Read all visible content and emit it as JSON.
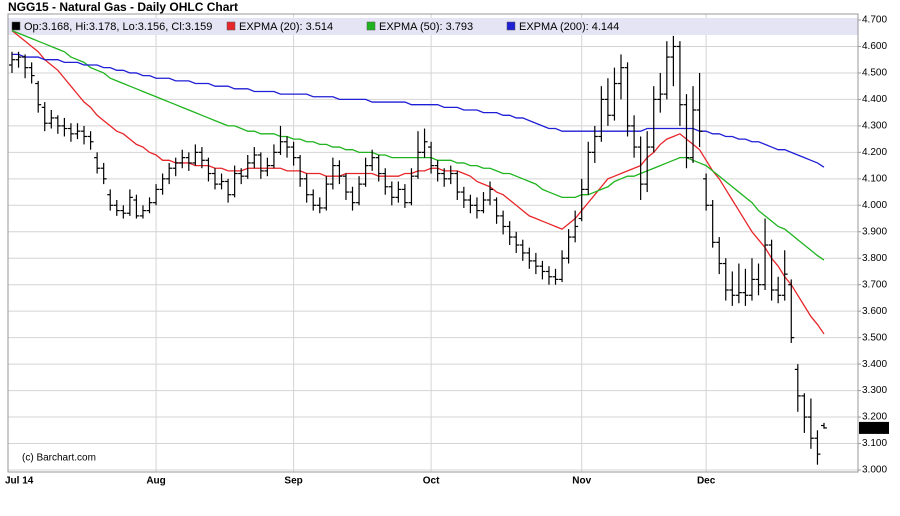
{
  "chart_data": {
    "type": "ohlc",
    "title": "NGG15 - Natural Gas - Daily OHLC Chart",
    "credit": "(c) Barchart.com",
    "categories": [
      "Jul 14",
      null,
      null,
      null,
      null,
      null,
      null,
      null,
      null,
      null,
      null,
      null,
      null,
      null,
      null,
      null,
      null,
      null,
      null,
      null,
      null,
      null,
      "Aug",
      null,
      null,
      null,
      null,
      null,
      null,
      null,
      null,
      null,
      null,
      null,
      null,
      null,
      null,
      null,
      null,
      null,
      null,
      null,
      null,
      "Sep",
      null,
      null,
      null,
      null,
      null,
      null,
      null,
      null,
      null,
      null,
      null,
      null,
      null,
      null,
      null,
      null,
      null,
      null,
      null,
      null,
      "Oct",
      null,
      null,
      null,
      null,
      null,
      null,
      null,
      null,
      null,
      null,
      null,
      null,
      null,
      null,
      null,
      null,
      null,
      null,
      null,
      null,
      null,
      null,
      "Nov",
      null,
      null,
      null,
      null,
      null,
      null,
      null,
      null,
      null,
      null,
      null,
      null,
      null,
      null,
      null,
      null,
      null,
      null,
      "Dec",
      null,
      null,
      null,
      null,
      null,
      null,
      null,
      null,
      null,
      null,
      null,
      null,
      null,
      null,
      null,
      null,
      null,
      null
    ],
    "bars": {
      "name": "Op:3.168, Hi:3.178, Lo:3.156, Cl:3.159",
      "color": "#000000",
      "values": [
        [
          4.53,
          4.58,
          4.5,
          4.55
        ],
        [
          4.55,
          4.58,
          4.52,
          4.56
        ],
        [
          4.56,
          4.57,
          4.48,
          4.52
        ],
        [
          4.52,
          4.54,
          4.46,
          4.49
        ],
        [
          4.46,
          4.47,
          4.35,
          4.38
        ],
        [
          4.37,
          4.39,
          4.28,
          4.31
        ],
        [
          4.31,
          4.36,
          4.29,
          4.33
        ],
        [
          4.33,
          4.34,
          4.27,
          4.3
        ],
        [
          4.3,
          4.33,
          4.26,
          4.29
        ],
        [
          4.29,
          4.31,
          4.24,
          4.27
        ],
        [
          4.27,
          4.31,
          4.25,
          4.28
        ],
        [
          4.28,
          4.3,
          4.23,
          4.26
        ],
        [
          4.26,
          4.28,
          4.21,
          4.24
        ],
        [
          4.18,
          4.2,
          4.12,
          4.14
        ],
        [
          4.14,
          4.16,
          4.08,
          4.1
        ],
        [
          4.04,
          4.06,
          3.98,
          4.0
        ],
        [
          4.0,
          4.02,
          3.96,
          3.98
        ],
        [
          3.98,
          4.0,
          3.95,
          3.97
        ],
        [
          3.97,
          4.06,
          3.96,
          4.03
        ],
        [
          4.02,
          4.04,
          3.95,
          3.96
        ],
        [
          3.96,
          4.0,
          3.95,
          3.98
        ],
        [
          3.98,
          4.03,
          3.97,
          4.01
        ],
        [
          4.01,
          4.08,
          4.0,
          4.06
        ],
        [
          4.06,
          4.12,
          4.04,
          4.1
        ],
        [
          4.1,
          4.16,
          4.08,
          4.14
        ],
        [
          4.14,
          4.18,
          4.11,
          4.16
        ],
        [
          4.16,
          4.21,
          4.14,
          4.18
        ],
        [
          4.18,
          4.2,
          4.13,
          4.16
        ],
        [
          4.16,
          4.23,
          4.15,
          4.2
        ],
        [
          4.2,
          4.22,
          4.14,
          4.17
        ],
        [
          4.17,
          4.18,
          4.09,
          4.12
        ],
        [
          4.12,
          4.14,
          4.06,
          4.08
        ],
        [
          4.08,
          4.12,
          4.06,
          4.09
        ],
        [
          4.09,
          4.1,
          4.01,
          4.04
        ],
        [
          4.04,
          4.15,
          4.03,
          4.12
        ],
        [
          4.12,
          4.14,
          4.08,
          4.11
        ],
        [
          4.11,
          4.19,
          4.1,
          4.16
        ],
        [
          4.16,
          4.22,
          4.14,
          4.19
        ],
        [
          4.19,
          4.2,
          4.1,
          4.13
        ],
        [
          4.13,
          4.18,
          4.11,
          4.15
        ],
        [
          4.15,
          4.23,
          4.14,
          4.2
        ],
        [
          4.2,
          4.3,
          4.19,
          4.24
        ],
        [
          4.24,
          4.26,
          4.18,
          4.22
        ],
        [
          4.22,
          4.24,
          4.15,
          4.18
        ],
        [
          4.18,
          4.19,
          4.07,
          4.1
        ],
        [
          4.1,
          4.12,
          4.01,
          4.04
        ],
        [
          4.04,
          4.06,
          3.98,
          4.0
        ],
        [
          4.0,
          4.03,
          3.97,
          3.99
        ],
        [
          3.99,
          4.11,
          3.98,
          4.08
        ],
        [
          4.08,
          4.18,
          4.06,
          4.15
        ],
        [
          4.15,
          4.17,
          4.08,
          4.11
        ],
        [
          4.11,
          4.12,
          4.02,
          4.05
        ],
        [
          4.05,
          4.07,
          3.98,
          4.01
        ],
        [
          4.01,
          4.11,
          4.0,
          4.08
        ],
        [
          4.08,
          4.18,
          4.07,
          4.15
        ],
        [
          4.15,
          4.21,
          4.13,
          4.18
        ],
        [
          4.18,
          4.19,
          4.09,
          4.12
        ],
        [
          4.12,
          4.14,
          4.04,
          4.07
        ],
        [
          4.07,
          4.09,
          4.0,
          4.03
        ],
        [
          4.03,
          4.09,
          4.01,
          4.06
        ],
        [
          4.06,
          4.08,
          3.99,
          4.01
        ],
        [
          4.01,
          4.14,
          4.0,
          4.11
        ],
        [
          4.11,
          4.28,
          4.1,
          4.2
        ],
        [
          4.2,
          4.29,
          4.18,
          4.24
        ],
        [
          4.22,
          4.24,
          4.12,
          4.15
        ],
        [
          4.15,
          4.17,
          4.09,
          4.12
        ],
        [
          4.12,
          4.14,
          4.07,
          4.1
        ],
        [
          4.1,
          4.15,
          4.08,
          4.12
        ],
        [
          4.12,
          4.13,
          4.02,
          4.05
        ],
        [
          4.05,
          4.07,
          3.99,
          4.02
        ],
        [
          4.02,
          4.04,
          3.97,
          4.0
        ],
        [
          4.0,
          4.03,
          3.95,
          3.98
        ],
        [
          3.98,
          4.05,
          3.97,
          4.02
        ],
        [
          4.02,
          4.09,
          4.0,
          4.06
        ],
        [
          4.02,
          4.03,
          3.93,
          3.96
        ],
        [
          3.96,
          3.98,
          3.89,
          3.92
        ],
        [
          3.92,
          3.94,
          3.85,
          3.88
        ],
        [
          3.88,
          3.9,
          3.82,
          3.85
        ],
        [
          3.85,
          3.87,
          3.79,
          3.82
        ],
        [
          3.82,
          3.84,
          3.76,
          3.79
        ],
        [
          3.79,
          3.82,
          3.74,
          3.77
        ],
        [
          3.77,
          3.79,
          3.72,
          3.75
        ],
        [
          3.75,
          3.77,
          3.7,
          3.73
        ],
        [
          3.73,
          3.76,
          3.7,
          3.72
        ],
        [
          3.72,
          3.83,
          3.71,
          3.8
        ],
        [
          3.8,
          3.91,
          3.78,
          3.88
        ],
        [
          3.88,
          3.98,
          3.86,
          3.92
        ],
        [
          3.95,
          4.1,
          3.94,
          4.06
        ],
        [
          4.06,
          4.24,
          4.04,
          4.2
        ],
        [
          4.2,
          4.3,
          4.16,
          4.26
        ],
        [
          4.26,
          4.45,
          4.24,
          4.4
        ],
        [
          4.4,
          4.48,
          4.3,
          4.34
        ],
        [
          4.34,
          4.52,
          4.32,
          4.46
        ],
        [
          4.46,
          4.57,
          4.4,
          4.52
        ],
        [
          4.52,
          4.54,
          4.26,
          4.3
        ],
        [
          4.3,
          4.34,
          4.18,
          4.22
        ],
        [
          4.22,
          4.26,
          4.02,
          4.08
        ],
        [
          4.08,
          4.28,
          4.05,
          4.22
        ],
        [
          4.22,
          4.45,
          4.2,
          4.4
        ],
        [
          4.4,
          4.5,
          4.35,
          4.42
        ],
        [
          4.42,
          4.62,
          4.4,
          4.56
        ],
        [
          4.56,
          4.64,
          4.45,
          4.6
        ],
        [
          4.6,
          4.62,
          4.3,
          4.38
        ],
        [
          4.38,
          4.42,
          4.14,
          4.18
        ],
        [
          4.18,
          4.45,
          4.16,
          4.36
        ],
        [
          4.36,
          4.5,
          4.22,
          4.28
        ],
        [
          4.1,
          4.12,
          3.98,
          4.0
        ],
        [
          4.0,
          4.02,
          3.84,
          3.86
        ],
        [
          3.86,
          3.88,
          3.74,
          3.78
        ],
        [
          3.78,
          3.8,
          3.64,
          3.68
        ],
        [
          3.68,
          3.75,
          3.62,
          3.66
        ],
        [
          3.66,
          3.78,
          3.63,
          3.67
        ],
        [
          3.67,
          3.76,
          3.62,
          3.66
        ],
        [
          3.66,
          3.8,
          3.64,
          3.72
        ],
        [
          3.72,
          3.78,
          3.66,
          3.7
        ],
        [
          3.7,
          3.95,
          3.68,
          3.85
        ],
        [
          3.85,
          3.87,
          3.64,
          3.68
        ],
        [
          3.68,
          3.73,
          3.63,
          3.66
        ],
        [
          3.66,
          3.83,
          3.64,
          3.74
        ],
        [
          3.7,
          3.72,
          3.48,
          3.5
        ],
        [
          3.38,
          3.4,
          3.22,
          3.28
        ],
        [
          3.28,
          3.29,
          3.14,
          3.2
        ],
        [
          3.2,
          3.27,
          3.08,
          3.12
        ],
        [
          3.12,
          3.15,
          3.02,
          3.06
        ],
        [
          3.168,
          3.178,
          3.156,
          3.159
        ]
      ]
    },
    "series": [
      {
        "name": "EXPMA (20): 3.514",
        "color": "#e8262a",
        "values": [
          4.66,
          4.64,
          4.62,
          4.6,
          4.58,
          4.55,
          4.53,
          4.51,
          4.48,
          4.45,
          4.42,
          4.39,
          4.37,
          4.34,
          4.32,
          4.3,
          4.28,
          4.27,
          4.25,
          4.23,
          4.22,
          4.2,
          4.19,
          4.17,
          4.17,
          4.16,
          4.16,
          4.16,
          4.15,
          4.15,
          4.15,
          4.14,
          4.14,
          4.13,
          4.13,
          4.13,
          4.14,
          4.14,
          4.14,
          4.14,
          4.14,
          4.14,
          4.13,
          4.13,
          4.13,
          4.12,
          4.12,
          4.12,
          4.11,
          4.11,
          4.11,
          4.12,
          4.12,
          4.12,
          4.12,
          4.12,
          4.11,
          4.11,
          4.11,
          4.11,
          4.12,
          4.12,
          4.13,
          4.13,
          4.14,
          4.14,
          4.13,
          4.13,
          4.13,
          4.12,
          4.11,
          4.09,
          4.08,
          4.07,
          4.05,
          4.04,
          4.02,
          4.0,
          3.98,
          3.96,
          3.95,
          3.94,
          3.93,
          3.92,
          3.91,
          3.93,
          3.95,
          3.98,
          4.01,
          4.04,
          4.07,
          4.1,
          4.11,
          4.12,
          4.13,
          4.14,
          4.15,
          4.18,
          4.2,
          4.23,
          4.25,
          4.26,
          4.27,
          4.25,
          4.23,
          4.21,
          4.17,
          4.13,
          4.1,
          4.06,
          4.02,
          3.98,
          3.94,
          3.9,
          3.87,
          3.84,
          3.8,
          3.77,
          3.73,
          3.7,
          3.66,
          3.62,
          3.58,
          3.55,
          3.514
        ]
      },
      {
        "name": "EXPMA (50): 3.793",
        "color": "#1fb41f",
        "values": [
          4.66,
          4.65,
          4.64,
          4.63,
          4.62,
          4.61,
          4.6,
          4.59,
          4.58,
          4.56,
          4.55,
          4.54,
          4.52,
          4.51,
          4.5,
          4.48,
          4.47,
          4.46,
          4.45,
          4.44,
          4.43,
          4.42,
          4.41,
          4.4,
          4.39,
          4.38,
          4.37,
          4.36,
          4.35,
          4.34,
          4.33,
          4.32,
          4.31,
          4.3,
          4.3,
          4.29,
          4.28,
          4.28,
          4.27,
          4.27,
          4.27,
          4.26,
          4.26,
          4.25,
          4.25,
          4.24,
          4.24,
          4.23,
          4.23,
          4.22,
          4.22,
          4.21,
          4.21,
          4.2,
          4.2,
          4.2,
          4.19,
          4.19,
          4.18,
          4.18,
          4.18,
          4.18,
          4.18,
          4.18,
          4.18,
          4.17,
          4.17,
          4.17,
          4.16,
          4.16,
          4.15,
          4.15,
          4.14,
          4.14,
          4.13,
          4.12,
          4.12,
          4.11,
          4.1,
          4.09,
          4.08,
          4.06,
          4.05,
          4.04,
          4.03,
          4.03,
          4.03,
          4.04,
          4.04,
          4.05,
          4.06,
          4.07,
          4.09,
          4.1,
          4.11,
          4.11,
          4.12,
          4.13,
          4.14,
          4.15,
          4.16,
          4.17,
          4.18,
          4.18,
          4.17,
          4.16,
          4.15,
          4.13,
          4.11,
          4.09,
          4.07,
          4.05,
          4.03,
          4.01,
          3.98,
          3.96,
          3.94,
          3.92,
          3.91,
          3.89,
          3.87,
          3.85,
          3.83,
          3.81,
          3.793
        ]
      },
      {
        "name": "EXPMA (200): 4.144",
        "color": "#1f1fd6",
        "values": [
          4.57,
          4.57,
          4.56,
          4.56,
          4.56,
          4.55,
          4.55,
          4.55,
          4.54,
          4.54,
          4.54,
          4.53,
          4.53,
          4.53,
          4.52,
          4.52,
          4.51,
          4.51,
          4.5,
          4.5,
          4.49,
          4.49,
          4.48,
          4.48,
          4.48,
          4.47,
          4.47,
          4.47,
          4.46,
          4.46,
          4.46,
          4.45,
          4.45,
          4.45,
          4.44,
          4.44,
          4.44,
          4.43,
          4.43,
          4.43,
          4.43,
          4.42,
          4.42,
          4.42,
          4.42,
          4.42,
          4.41,
          4.41,
          4.41,
          4.41,
          4.4,
          4.4,
          4.4,
          4.4,
          4.4,
          4.39,
          4.39,
          4.39,
          4.39,
          4.39,
          4.39,
          4.38,
          4.38,
          4.38,
          4.38,
          4.38,
          4.37,
          4.37,
          4.37,
          4.36,
          4.36,
          4.36,
          4.35,
          4.35,
          4.35,
          4.34,
          4.34,
          4.33,
          4.33,
          4.32,
          4.31,
          4.3,
          4.29,
          4.29,
          4.28,
          4.28,
          4.28,
          4.28,
          4.28,
          4.28,
          4.28,
          4.28,
          4.28,
          4.28,
          4.28,
          4.28,
          4.28,
          4.29,
          4.29,
          4.29,
          4.29,
          4.29,
          4.29,
          4.29,
          4.29,
          4.28,
          4.28,
          4.27,
          4.27,
          4.26,
          4.26,
          4.25,
          4.25,
          4.24,
          4.24,
          4.23,
          4.22,
          4.21,
          4.21,
          4.2,
          4.19,
          4.18,
          4.17,
          4.16,
          4.144
        ]
      }
    ],
    "ylim": [
      3.0,
      4.7
    ],
    "yticks": [
      {
        "value": 3.0,
        "label": "3.000"
      },
      {
        "value": 3.1,
        "label": "3.100"
      },
      {
        "value": 3.2,
        "label": "3.200"
      },
      {
        "value": 3.3,
        "label": "3.300"
      },
      {
        "value": 3.4,
        "label": "3.400"
      },
      {
        "value": 3.5,
        "label": "3.500"
      },
      {
        "value": 3.6,
        "label": "3.600"
      },
      {
        "value": 3.7,
        "label": "3.700"
      },
      {
        "value": 3.8,
        "label": "3.800"
      },
      {
        "value": 3.9,
        "label": "3.900"
      },
      {
        "value": 4.0,
        "label": "4.000"
      },
      {
        "value": 4.1,
        "label": "4.100"
      },
      {
        "value": 4.2,
        "label": "4.200"
      },
      {
        "value": 4.3,
        "label": "4.300"
      },
      {
        "value": 4.4,
        "label": "4.400"
      },
      {
        "value": 4.5,
        "label": "4.500"
      },
      {
        "value": 4.6,
        "label": "4.600"
      },
      {
        "value": 4.7,
        "label": "4.700"
      }
    ],
    "grid": true
  }
}
